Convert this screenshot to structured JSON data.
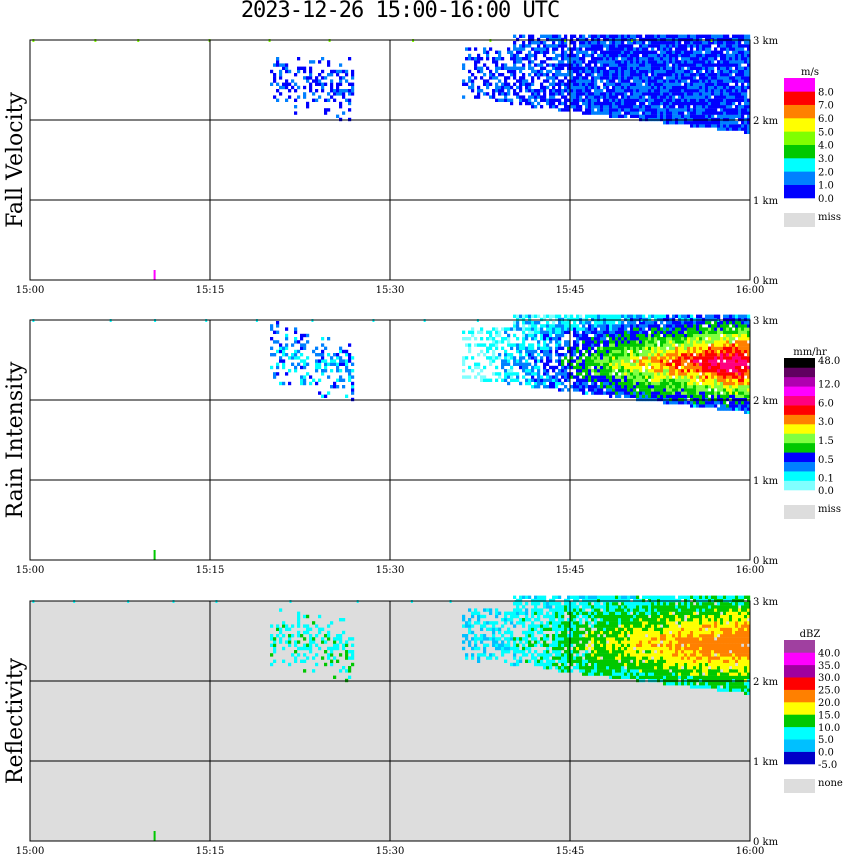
{
  "title": "2023-12-26   15:00-16:00 UTC",
  "chart_data": {
    "type": "heatmap",
    "title": "2023-12-26   15:00-16:00 UTC",
    "x_ticks": [
      "15:00",
      "15:15",
      "15:30",
      "15:45",
      "16:00"
    ],
    "x_range_minutes": [
      0,
      60
    ],
    "y_ticks": [
      "0 km",
      "1 km",
      "2 km",
      "3 km"
    ],
    "y_range_km": [
      0,
      3
    ],
    "grid": true,
    "panels": [
      {
        "name": "Fall Velocity",
        "unit": "m/s",
        "background": "#ffffff",
        "colors": [
          "#0000ff",
          "#0080ff",
          "#00ffff",
          "#00c800",
          "#80ff00",
          "#ffff00",
          "#ff8000",
          "#ff0000",
          "#ff00ff"
        ],
        "labels": [
          "0.0",
          "1.0",
          "2.0",
          "3.0",
          "4.0",
          "5.0",
          "6.0",
          "7.0",
          "8.0"
        ],
        "missing_label": "miss"
      },
      {
        "name": "Rain Intensity",
        "unit": "mm/hr",
        "background": "#ffffff",
        "colors": [
          "#80ffff",
          "#00ffff",
          "#0080ff",
          "#0000ff",
          "#00c800",
          "#80ff40",
          "#ffff00",
          "#ff8000",
          "#ff0000",
          "#ff0080",
          "#ff00ff",
          "#b000b0",
          "#600060",
          "#000000"
        ],
        "labels": [
          "0.0",
          "0.1",
          "0.5",
          "1.5",
          "3.0",
          "6.0",
          "12.0",
          "48.0"
        ],
        "missing_label": "miss"
      },
      {
        "name": "Reflectivity",
        "unit": "dBZ",
        "background": "#dddddd",
        "colors": [
          "#0000c8",
          "#00c0ff",
          "#00ffff",
          "#00c800",
          "#ffff00",
          "#ff8000",
          "#ff0000",
          "#a000a0",
          "#ff00ff",
          "#a040a0"
        ],
        "labels": [
          "-5.0",
          "0.0",
          "5.0",
          "10.0",
          "15.0",
          "20.0",
          "25.0",
          "30.0",
          "35.0",
          "40.0"
        ],
        "missing_label": "none"
      }
    ],
    "echo_regions": [
      {
        "start": "15:20",
        "end": "15:27",
        "base_km": 2.2,
        "top_km": 3.0
      },
      {
        "start": "15:36",
        "end": "16:00",
        "base_km": 1.8,
        "top_km": 3.1
      }
    ]
  }
}
